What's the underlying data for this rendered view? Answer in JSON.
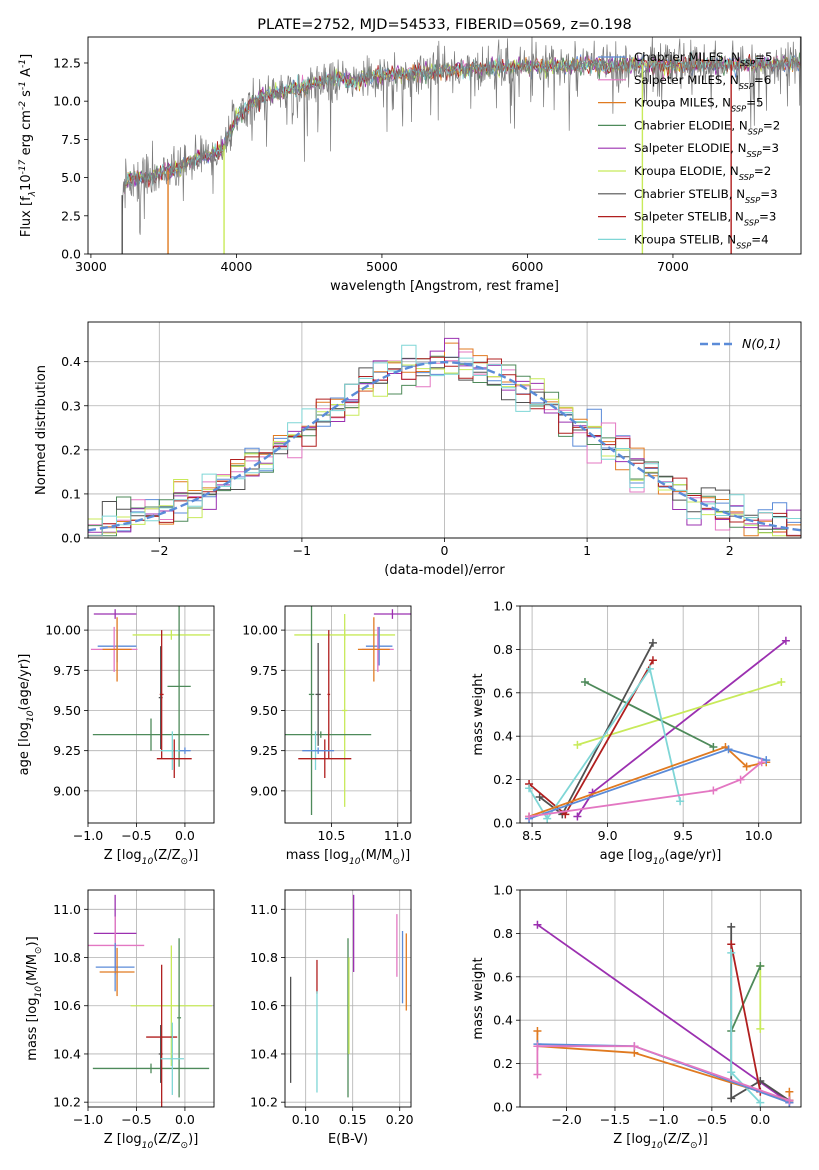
{
  "colors": {
    "Chabrier MILES": "#5b8bd8",
    "Salpeter MILES": "#e377c2",
    "Kroupa MILES": "#e07a20",
    "Chabrier ELODIE": "#4e8a5a",
    "Salpeter ELODIE": "#9b30b0",
    "Kroupa ELODIE": "#c8ea5a",
    "Chabrier STELIB": "#505050",
    "Salpeter STELIB": "#b01f1f",
    "Kroupa STELIB": "#7fd6d6"
  },
  "chart_data": [
    {
      "id": "spectrum",
      "type": "line",
      "title": "PLATE=2752, MJD=54533, FIBERID=0569, z=0.198",
      "xlabel": "wavelength [Angstrom, rest frame]",
      "ylabel": "Flux [f$_\\lambda$10$^{-17}$ erg cm$^{-2}$ s$^{-1}$ A$^{-1}$]",
      "xlim": [
        2980,
        7880
      ],
      "ylim": [
        0,
        14.2
      ],
      "xticks": [
        "3000",
        "4000",
        "5000",
        "6000",
        "7000"
      ],
      "yticks": [
        "0.0",
        "2.5",
        "5.0",
        "7.5",
        "10.0",
        "12.5"
      ],
      "legend_position": "right",
      "legend": [
        {
          "label": "Chabrier MILES, N$_{SSP}$=5",
          "color": "#5b8bd8"
        },
        {
          "label": "Salpeter MILES, N$_{SSP}$=6",
          "color": "#e377c2"
        },
        {
          "label": "Kroupa MILES, N$_{SSP}$=5",
          "color": "#e07a20"
        },
        {
          "label": "Chabrier ELODIE, N$_{SSP}$=2",
          "color": "#4e8a5a"
        },
        {
          "label": "Salpeter ELODIE, N$_{SSP}$=3",
          "color": "#9b30b0"
        },
        {
          "label": "Kroupa ELODIE, N$_{SSP}$=2",
          "color": "#c8ea5a"
        },
        {
          "label": "Chabrier STELIB, N$_{SSP}$=3",
          "color": "#505050"
        },
        {
          "label": "Salpeter STELIB, N$_{SSP}$=3",
          "color": "#b01f1f"
        },
        {
          "label": "Kroupa STELIB, N$_{SSP}$=4",
          "color": "#7fd6d6"
        }
      ],
      "continuum": {
        "x": [
          3200,
          3250,
          3300,
          3400,
          3500,
          3600,
          3700,
          3800,
          3900,
          4000,
          4100,
          4200,
          4300,
          4400,
          4500,
          4600,
          4700,
          4800,
          4900,
          5000,
          5200,
          5400,
          5600,
          5800,
          6000,
          6200,
          6400,
          6600,
          6800,
          7000,
          7200,
          7400,
          7600,
          7880
        ],
        "y": [
          3.4,
          4.9,
          5.0,
          5.0,
          5.4,
          5.6,
          6.2,
          6.4,
          6.8,
          8.9,
          9.8,
          10.4,
          10.6,
          10.8,
          11.0,
          11.4,
          11.5,
          11.2,
          11.6,
          11.7,
          11.8,
          12.0,
          12.1,
          12.2,
          12.3,
          12.3,
          12.4,
          12.3,
          12.4,
          12.3,
          12.4,
          12.4,
          12.4,
          12.5
        ]
      },
      "edge_drops": [
        {
          "x": 3215,
          "color": "#505050"
        },
        {
          "x": 3530,
          "color": "#e07a20"
        },
        {
          "x": 3915,
          "color": "#c8ea5a"
        },
        {
          "x": 6790,
          "color": "#c8ea5a"
        },
        {
          "x": 7400,
          "color": "#b01f1f"
        }
      ]
    },
    {
      "id": "residual-hist",
      "type": "line",
      "xlabel": "(data-model)/error",
      "ylabel": "Normed distribution",
      "xlim": [
        -2.5,
        2.5
      ],
      "ylim": [
        0,
        0.49
      ],
      "xticks": [
        "-2",
        "-1",
        "0",
        "1",
        "2"
      ],
      "yticks": [
        "0.0",
        "0.1",
        "0.2",
        "0.3",
        "0.4"
      ],
      "legend": [
        {
          "label": "$\\mathcal{N}(0,1)$",
          "color": "#5b8bd8",
          "dashed": true
        }
      ],
      "gaussian": {
        "mean": 0,
        "sigma": 1
      },
      "bin_width": 0.1
    },
    {
      "id": "age-vs-z",
      "type": "errorbar",
      "xlabel": "Z [log$_{10}$(Z/Z$_\\odot$)]",
      "ylabel": "age  [log$_{10}$(age/yr)]",
      "xlim": [
        -1.0,
        0.3
      ],
      "ylim": [
        8.8,
        10.15
      ],
      "xticks": [
        "-1.0",
        "-0.5",
        "0.0"
      ],
      "yticks": [
        "9.00",
        "9.25",
        "9.50",
        "9.75",
        "10.00"
      ],
      "points": [
        {
          "color": "#9b30b0",
          "x": -0.72,
          "xerr": 0.22,
          "y": 10.1,
          "yerr": 0.03
        },
        {
          "color": "#c8ea5a",
          "x": -0.14,
          "xerr": 0.4,
          "y": 9.97,
          "yerr": 0.03
        },
        {
          "color": "#4e8a5a",
          "x": -0.06,
          "xerr": 0.12,
          "y": 9.65,
          "yerr": 0.5
        },
        {
          "color": "#5b8bd8",
          "x": -0.7,
          "xerr": 0.2,
          "y": 9.9,
          "yerr": 0.1
        },
        {
          "color": "#e377c2",
          "x": -0.73,
          "xerr": 0.24,
          "y": 9.88,
          "yerr": 0.14
        },
        {
          "color": "#e07a20",
          "x": -0.7,
          "xerr": 0.15,
          "y": 9.88,
          "yerr": 0.2
        },
        {
          "color": "#4e8a5a",
          "x": -0.35,
          "xerr": 0.6,
          "y": 9.35,
          "yerr": 0.1
        },
        {
          "color": "#505050",
          "x": -0.25,
          "xerr": 0.02,
          "y": 9.58,
          "yerr": 0.32
        },
        {
          "color": "#b01f1f",
          "x": -0.24,
          "xerr": 0.02,
          "y": 9.6,
          "yerr": 0.4
        },
        {
          "color": "#7fd6d6",
          "x": -0.13,
          "xerr": 0.12,
          "y": 9.25,
          "yerr": 0.12
        },
        {
          "color": "#b01f1f",
          "x": -0.11,
          "xerr": 0.18,
          "y": 9.2,
          "yerr": 0.12
        },
        {
          "color": "#5b8bd8",
          "x": 0.0,
          "xerr": 0.06,
          "y": 9.25,
          "yerr": 0.02
        }
      ]
    },
    {
      "id": "age-vs-mass",
      "type": "errorbar",
      "xlabel": "mass [log$_{10}$(M/M$_\\odot$)]",
      "ylabel": "",
      "xlim": [
        10.15,
        11.1
      ],
      "ylim": [
        8.8,
        10.15
      ],
      "xticks": [
        "10.5",
        "11.0"
      ],
      "yticks": [
        "9.00",
        "9.25",
        "9.50",
        "9.75",
        "10.00"
      ],
      "points": [
        {
          "color": "#9b30b0",
          "x": 10.96,
          "xerr": 0.14,
          "y": 10.1,
          "yerr": 0.03
        },
        {
          "color": "#c8ea5a",
          "x": 10.6,
          "xerr": 0.38,
          "y": 9.97,
          "yerr": 0.03
        },
        {
          "color": "#c8ea5a",
          "x": 10.6,
          "xerr": 0.02,
          "y": 9.5,
          "yerr": 0.6
        },
        {
          "color": "#5b8bd8",
          "x": 10.86,
          "xerr": 0.1,
          "y": 9.9,
          "yerr": 0.12
        },
        {
          "color": "#e377c2",
          "x": 10.85,
          "xerr": 0.12,
          "y": 9.88,
          "yerr": 0.14
        },
        {
          "color": "#e07a20",
          "x": 10.82,
          "xerr": 0.12,
          "y": 9.88,
          "yerr": 0.2
        },
        {
          "color": "#4e8a5a",
          "x": 10.35,
          "xerr": 0.02,
          "y": 9.6,
          "yerr": 0.75
        },
        {
          "color": "#4e8a5a",
          "x": 10.42,
          "xerr": 0.38,
          "y": 9.35,
          "yerr": 0.02
        },
        {
          "color": "#505050",
          "x": 10.4,
          "xerr": 0.02,
          "y": 9.6,
          "yerr": 0.32
        },
        {
          "color": "#b01f1f",
          "x": 10.48,
          "xerr": 0.01,
          "y": 9.6,
          "yerr": 0.4
        },
        {
          "color": "#7fd6d6",
          "x": 10.38,
          "xerr": 0.02,
          "y": 9.25,
          "yerr": 0.12
        },
        {
          "color": "#b01f1f",
          "x": 10.45,
          "xerr": 0.2,
          "y": 9.2,
          "yerr": 0.12
        },
        {
          "color": "#5b8bd8",
          "x": 10.4,
          "xerr": 0.12,
          "y": 9.25,
          "yerr": 0.02
        }
      ]
    },
    {
      "id": "weight-vs-age",
      "type": "line",
      "xlabel": "age  [log$_{10}$(age/yr)]",
      "ylabel": "mass weight",
      "xlim": [
        8.42,
        10.28
      ],
      "ylim": [
        0,
        1.0
      ],
      "xticks": [
        "8.5",
        "9.0",
        "9.5",
        "10.0"
      ],
      "yticks": [
        "0.0",
        "0.2",
        "0.4",
        "0.6",
        "0.8",
        "1.0"
      ],
      "series": [
        {
          "color": "#9b30b0",
          "x": [
            8.8,
            8.9,
            10.18
          ],
          "y": [
            0.03,
            0.14,
            0.84
          ]
        },
        {
          "color": "#c8ea5a",
          "x": [
            8.8,
            10.15
          ],
          "y": [
            0.36,
            0.65
          ]
        },
        {
          "color": "#4e8a5a",
          "x": [
            8.85,
            9.7
          ],
          "y": [
            0.65,
            0.35
          ]
        },
        {
          "color": "#505050",
          "x": [
            8.55,
            8.7,
            9.3
          ],
          "y": [
            0.12,
            0.04,
            0.83
          ]
        },
        {
          "color": "#b01f1f",
          "x": [
            8.48,
            8.72,
            9.3
          ],
          "y": [
            0.18,
            0.04,
            0.75
          ]
        },
        {
          "color": "#7fd6d6",
          "x": [
            8.48,
            8.6,
            9.28,
            9.48
          ],
          "y": [
            0.16,
            0.02,
            0.71,
            0.1
          ]
        },
        {
          "color": "#e07a20",
          "x": [
            8.48,
            9.78,
            9.92,
            10.05
          ],
          "y": [
            0.03,
            0.35,
            0.26,
            0.28
          ]
        },
        {
          "color": "#5b8bd8",
          "x": [
            8.48,
            9.8,
            10.05
          ],
          "y": [
            0.02,
            0.34,
            0.29
          ]
        },
        {
          "color": "#e377c2",
          "x": [
            8.48,
            9.7,
            9.88,
            10.02
          ],
          "y": [
            0.03,
            0.15,
            0.2,
            0.28
          ]
        }
      ]
    },
    {
      "id": "mass-vs-z",
      "type": "errorbar",
      "xlabel": "Z [log$_{10}$(Z/Z$_\\odot$)]",
      "ylabel": "mass [log$_{10}$(M/M$_\\odot$)]",
      "xlim": [
        -1.0,
        0.3
      ],
      "ylim": [
        10.18,
        11.08
      ],
      "xticks": [
        "-1.0",
        "-0.5",
        "0.0"
      ],
      "yticks": [
        "10.2",
        "10.4",
        "10.6",
        "10.8",
        "11.0"
      ],
      "points": [
        {
          "color": "#9b30b0",
          "x": -0.72,
          "xerr": 0.22,
          "y": 10.9,
          "yerr": 0.16
        },
        {
          "color": "#e377c2",
          "x": -0.72,
          "xerr": 0.3,
          "y": 10.85,
          "yerr": 0.12
        },
        {
          "color": "#5b8bd8",
          "x": -0.72,
          "xerr": 0.2,
          "y": 10.76,
          "yerr": 0.1
        },
        {
          "color": "#e07a20",
          "x": -0.7,
          "xerr": 0.18,
          "y": 10.74,
          "yerr": 0.1
        },
        {
          "color": "#c8ea5a",
          "x": -0.14,
          "xerr": 0.42,
          "y": 10.6,
          "yerr": 0.25
        },
        {
          "color": "#4e8a5a",
          "x": -0.35,
          "xerr": 0.6,
          "y": 10.34,
          "yerr": 0.02
        },
        {
          "color": "#4e8a5a",
          "x": -0.06,
          "xerr": 0.02,
          "y": 10.55,
          "yerr": 0.33
        },
        {
          "color": "#505050",
          "x": -0.25,
          "xerr": 0.02,
          "y": 10.4,
          "yerr": 0.12
        },
        {
          "color": "#b01f1f",
          "x": -0.24,
          "xerr": 0.16,
          "y": 10.47,
          "yerr": 0.3
        },
        {
          "color": "#7fd6d6",
          "x": -0.13,
          "xerr": 0.12,
          "y": 10.38,
          "yerr": 0.15
        }
      ]
    },
    {
      "id": "mass-vs-ebv",
      "type": "errorbar",
      "xlabel": "E(B-V)",
      "ylabel": "",
      "xlim": [
        0.078,
        0.212
      ],
      "ylim": [
        10.18,
        11.08
      ],
      "xticks": [
        "0.10",
        "0.15",
        "0.20"
      ],
      "yticks": [
        "10.2",
        "10.4",
        "10.6",
        "10.8",
        "11.0"
      ],
      "points": [
        {
          "color": "#505050",
          "x": 0.084,
          "xerr": 0,
          "y": 10.5,
          "yerr": 0.22
        },
        {
          "color": "#b01f1f",
          "x": 0.112,
          "xerr": 0,
          "y": 10.72,
          "yerr": 0.07
        },
        {
          "color": "#7fd6d6",
          "x": 0.112,
          "xerr": 0,
          "y": 10.45,
          "yerr": 0.21
        },
        {
          "color": "#4e8a5a",
          "x": 0.145,
          "xerr": 0,
          "y": 10.55,
          "yerr": 0.33
        },
        {
          "color": "#c8ea5a",
          "x": 0.146,
          "xerr": 0,
          "y": 10.6,
          "yerr": 0.2
        },
        {
          "color": "#9b30b0",
          "x": 0.151,
          "xerr": 0,
          "y": 10.9,
          "yerr": 0.16
        },
        {
          "color": "#e377c2",
          "x": 0.197,
          "xerr": 0,
          "y": 10.85,
          "yerr": 0.13
        },
        {
          "color": "#5b8bd8",
          "x": 0.203,
          "xerr": 0,
          "y": 10.76,
          "yerr": 0.15
        },
        {
          "color": "#e07a20",
          "x": 0.207,
          "xerr": 0,
          "y": 10.74,
          "yerr": 0.16
        }
      ]
    },
    {
      "id": "weight-vs-z",
      "type": "line",
      "xlabel": "Z [log$_{10}$(Z/Z$_\\odot$)]",
      "ylabel": "mass weight",
      "xlim": [
        -2.48,
        0.42
      ],
      "ylim": [
        0,
        1.0
      ],
      "xticks": [
        "-2.0",
        "-1.5",
        "-1.0",
        "-0.5",
        "0.0"
      ],
      "yticks": [
        "0.0",
        "0.2",
        "0.4",
        "0.6",
        "0.8",
        "1.0"
      ],
      "series": [
        {
          "color": "#9b30b0",
          "x": [
            -2.3,
            0.3
          ],
          "y": [
            0.84,
            0.02
          ]
        },
        {
          "color": "#c8ea5a",
          "x": [
            0.0,
            0.0
          ],
          "y": [
            0.65,
            0.36
          ]
        },
        {
          "color": "#4e8a5a",
          "x": [
            -0.3,
            0.0
          ],
          "y": [
            0.35,
            0.65
          ]
        },
        {
          "color": "#505050",
          "x": [
            -0.3,
            -0.3,
            0.0,
            0.3
          ],
          "y": [
            0.83,
            0.04,
            0.12,
            0.03
          ]
        },
        {
          "color": "#b01f1f",
          "x": [
            -0.3,
            0.0,
            0.3
          ],
          "y": [
            0.75,
            0.07,
            0.03
          ]
        },
        {
          "color": "#7fd6d6",
          "x": [
            -0.3,
            -0.3,
            0.0
          ],
          "y": [
            0.71,
            0.16,
            0.02
          ]
        },
        {
          "color": "#e07a20",
          "x": [
            -2.3,
            -2.3,
            -1.3,
            0.3,
            0.3
          ],
          "y": [
            0.35,
            0.28,
            0.25,
            0.03,
            0.07
          ]
        },
        {
          "color": "#5b8bd8",
          "x": [
            -2.3,
            -1.3,
            0.3
          ],
          "y": [
            0.29,
            0.28,
            0.02
          ]
        },
        {
          "color": "#e377c2",
          "x": [
            -2.3,
            -2.3,
            -1.3,
            0.3
          ],
          "y": [
            0.15,
            0.28,
            0.28,
            0.03
          ]
        }
      ]
    }
  ]
}
